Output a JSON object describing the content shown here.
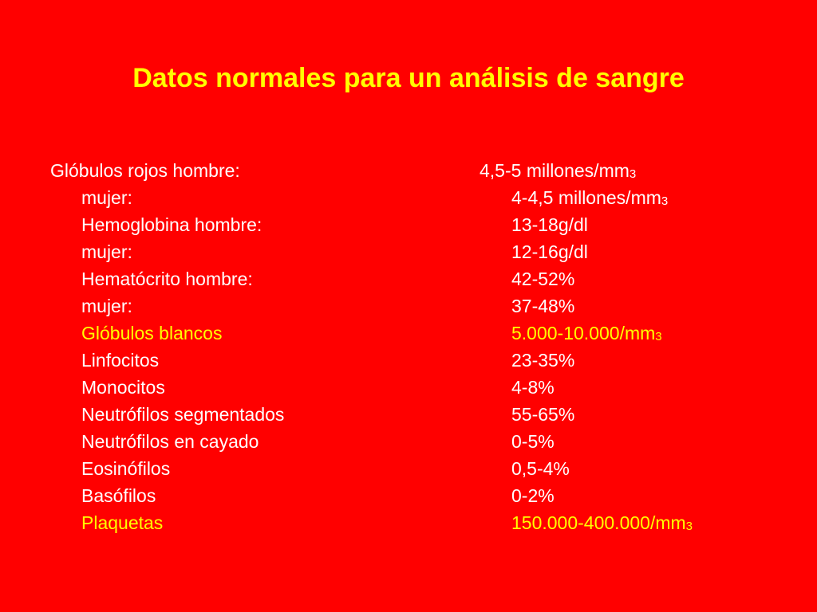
{
  "slide": {
    "title": "Datos normales para un análisis de sangre",
    "rows": [
      {
        "label": "Glóbulos rojos hombre:",
        "value": "4,5-5 millones/mm",
        "suffix": "3",
        "highlight": false
      },
      {
        "label": "mujer:",
        "value": "4-4,5 millones/mm",
        "suffix": "3",
        "highlight": false
      },
      {
        "label": "Hemoglobina hombre:",
        "value": "13-18g/dl",
        "suffix": "",
        "highlight": false
      },
      {
        "label": "mujer:",
        "value": "12-16g/dl",
        "suffix": "",
        "highlight": false
      },
      {
        "label": "Hematócrito hombre:",
        "value": "42-52%",
        "suffix": "",
        "highlight": false
      },
      {
        "label": "mujer:",
        "value": "37-48%",
        "suffix": "",
        "highlight": false
      },
      {
        "label": "Glóbulos blancos",
        "value": "5.000-10.000/mm",
        "suffix": "3",
        "highlight": true
      },
      {
        "label": "Linfocitos",
        "value": "23-35%",
        "suffix": "",
        "highlight": false
      },
      {
        "label": "Monocitos",
        "value": "4-8%",
        "suffix": "",
        "highlight": false
      },
      {
        "label": "Neutrófilos segmentados",
        "value": "55-65%",
        "suffix": "",
        "highlight": false
      },
      {
        "label": "Neutrófilos en cayado",
        "value": "0-5%",
        "suffix": "",
        "highlight": false
      },
      {
        "label": "Eosinófilos",
        "value": "0,5-4%",
        "suffix": "",
        "highlight": false
      },
      {
        "label": "Basófilos",
        "value": "0-2%",
        "suffix": "",
        "highlight": false
      },
      {
        "label": "Plaquetas",
        "value": "150.000-400.000/mm",
        "suffix": "3",
        "highlight": true
      }
    ]
  },
  "colors": {
    "background": "#ff0000",
    "text": "#ffffff",
    "highlight": "#ffff00"
  }
}
